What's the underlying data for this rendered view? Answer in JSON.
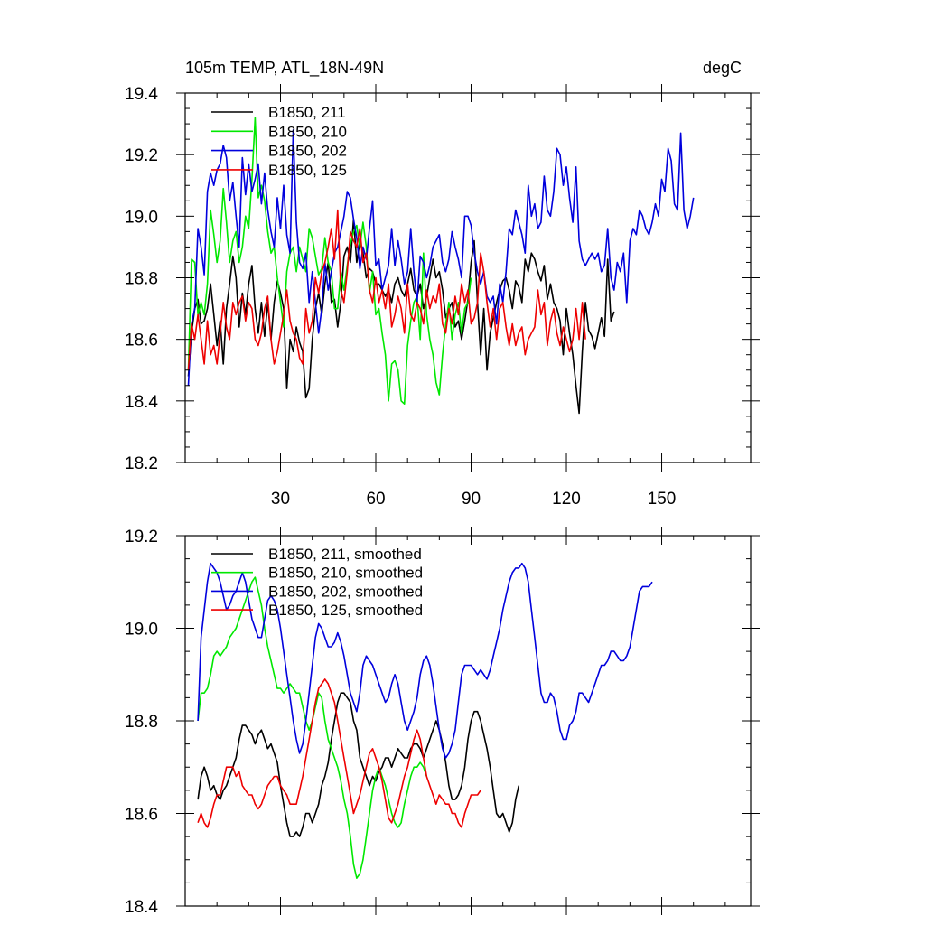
{
  "chart_data": [
    {
      "type": "line",
      "title": "105m TEMP, ATL_18N-49N",
      "units": "degC",
      "xlim": [
        0,
        178
      ],
      "ylim": [
        18.2,
        19.4
      ],
      "grid": false,
      "legend_placement": "top-left",
      "x_ticks": [
        30,
        60,
        90,
        120,
        150
      ],
      "x_tick_labels": [
        "30",
        "60",
        "90",
        "120",
        "150"
      ],
      "y_ticks": [
        18.2,
        18.4,
        18.6,
        18.8,
        19.0,
        19.2,
        19.4
      ],
      "y_tick_labels": [
        "18.2",
        "18.4",
        "18.6",
        "18.8",
        "19.0",
        "19.2",
        "19.4"
      ],
      "series": [
        {
          "name": "B1850, 211",
          "color": "#000000",
          "x0": 1,
          "values": [
            18.48,
            18.62,
            18.7,
            18.73,
            18.65,
            18.66,
            18.7,
            18.78,
            18.68,
            18.58,
            18.66,
            18.52,
            18.7,
            18.78,
            18.87,
            18.8,
            18.64,
            18.75,
            18.68,
            18.78,
            18.84,
            18.7,
            18.62,
            18.72,
            18.61,
            18.72,
            18.6,
            18.72,
            18.79,
            18.75,
            18.7,
            18.44,
            18.6,
            18.56,
            18.64,
            18.59,
            18.56,
            18.41,
            18.44,
            18.6,
            18.7,
            18.75,
            18.68,
            18.78,
            18.85,
            18.72,
            18.73,
            18.64,
            18.72,
            18.87,
            18.9,
            18.85,
            18.99,
            18.85,
            18.92,
            18.88,
            18.8,
            18.83,
            18.82,
            18.78,
            18.78,
            18.76,
            18.74,
            18.76,
            18.72,
            18.78,
            18.8,
            18.76,
            18.74,
            18.78,
            18.83,
            18.76,
            18.74,
            18.78,
            18.7,
            18.74,
            18.8,
            18.86,
            18.8,
            18.82,
            18.76,
            18.67,
            18.7,
            18.72,
            18.64,
            18.66,
            18.6,
            18.66,
            18.73,
            18.85,
            18.92,
            18.72,
            18.55,
            18.7,
            18.5,
            18.62,
            18.67,
            18.72,
            18.76,
            18.79,
            18.8,
            18.76,
            18.7,
            18.79,
            18.77,
            18.72,
            18.86,
            18.82,
            18.88,
            18.86,
            18.82,
            18.79,
            18.84,
            18.73,
            18.78,
            18.72,
            18.7,
            18.66,
            18.55,
            18.7,
            18.62,
            18.55,
            18.45,
            18.36,
            18.56,
            18.72,
            18.63,
            18.61,
            18.57,
            18.62,
            18.67,
            18.61,
            18.86,
            18.66,
            18.69
          ]
        },
        {
          "name": "B1850, 210",
          "color": "#00e800",
          "x0": 1,
          "values": [
            18.5,
            18.86,
            18.85,
            18.68,
            18.72,
            18.68,
            18.78,
            19.02,
            18.94,
            18.85,
            18.92,
            19.09,
            18.98,
            18.85,
            18.92,
            18.95,
            18.85,
            18.9,
            19.0,
            18.96,
            19.12,
            19.32,
            19.06,
            19.1,
            19.05,
            18.95,
            18.88,
            18.9,
            18.8,
            18.72,
            18.64,
            18.82,
            18.88,
            18.9,
            18.82,
            18.9,
            18.86,
            18.82,
            18.96,
            18.93,
            18.87,
            18.81,
            18.83,
            18.93,
            18.85,
            18.82,
            18.7,
            18.7,
            18.82,
            18.76,
            18.84,
            18.91,
            18.95,
            18.97,
            18.9,
            18.98,
            18.9,
            18.75,
            18.82,
            18.68,
            18.7,
            18.62,
            18.55,
            18.4,
            18.52,
            18.53,
            18.5,
            18.4,
            18.39,
            18.58,
            18.66,
            18.72,
            18.74,
            18.6,
            18.88,
            18.68,
            18.6,
            18.55,
            18.46,
            18.42,
            18.55,
            18.65,
            18.72,
            18.6,
            18.68,
            18.72,
            18.62,
            18.7,
            18.72,
            18.8
          ]
        },
        {
          "name": "B1850, 202",
          "color": "#0000dd",
          "x0": 1,
          "values": [
            18.45,
            18.65,
            18.7,
            18.96,
            18.9,
            18.81,
            19.08,
            19.14,
            19.1,
            19.15,
            19.17,
            19.23,
            19.19,
            19.05,
            19.11,
            19.0,
            18.9,
            19.19,
            19.07,
            19.17,
            19.08,
            19.12,
            19.17,
            19.04,
            19.14,
            19.02,
            18.95,
            18.9,
            19.06,
            18.96,
            19.1,
            18.94,
            18.88,
            19.28,
            18.98,
            18.85,
            18.83,
            18.88,
            18.72,
            18.82,
            18.72,
            18.62,
            18.7,
            18.85,
            18.76,
            18.82,
            18.88,
            18.9,
            18.95,
            19.0,
            19.08,
            19.06,
            18.99,
            18.93,
            18.83,
            18.9,
            18.86,
            18.96,
            19.05,
            18.84,
            18.86,
            18.76,
            18.8,
            18.84,
            18.96,
            18.84,
            18.92,
            18.86,
            18.78,
            18.82,
            18.96,
            18.82,
            18.72,
            18.87,
            18.85,
            18.8,
            18.84,
            18.9,
            18.92,
            18.94,
            18.85,
            18.82,
            18.86,
            18.95,
            18.9,
            18.86,
            18.8,
            19.0,
            19.0,
            18.97,
            18.88,
            18.82,
            18.78,
            18.82,
            18.74,
            18.72,
            18.74,
            18.65,
            18.78,
            18.72,
            18.82,
            18.96,
            18.94,
            19.02,
            18.98,
            18.94,
            18.88,
            19.1,
            19.0,
            19.04,
            18.96,
            18.98,
            19.13,
            19.02,
            19.0,
            19.08,
            19.22,
            19.2,
            19.1,
            19.16,
            19.06,
            18.98,
            19.16,
            18.92,
            18.86,
            18.84,
            18.86,
            18.88,
            18.86,
            18.88,
            18.82,
            18.84,
            18.96,
            18.8,
            18.76,
            18.85,
            18.82,
            18.88,
            18.72,
            18.92,
            18.96,
            18.94,
            19.02,
            19.0,
            18.96,
            18.94,
            18.98,
            19.04,
            19.0,
            19.12,
            19.08,
            19.22,
            19.18,
            19.04,
            19.02,
            19.27,
            19.02,
            18.96,
            19.0,
            19.06
          ]
        },
        {
          "name": "B1850, 125",
          "color": "#ee0000",
          "x0": 1,
          "values": [
            18.5,
            18.65,
            18.6,
            18.68,
            18.6,
            18.52,
            18.66,
            18.55,
            18.58,
            18.52,
            18.62,
            18.72,
            18.64,
            18.6,
            18.72,
            18.68,
            18.72,
            18.74,
            18.66,
            18.72,
            18.7,
            18.6,
            18.58,
            18.62,
            18.7,
            18.74,
            18.6,
            18.52,
            18.56,
            18.62,
            18.68,
            18.76,
            18.66,
            18.62,
            18.6,
            18.54,
            18.52,
            18.7,
            18.62,
            18.66,
            18.8,
            18.75,
            18.82,
            18.85,
            18.9,
            18.96,
            18.86,
            19.02,
            18.76,
            18.72,
            18.82,
            18.95,
            18.92,
            18.9,
            18.96,
            18.85,
            18.88,
            18.76,
            18.72,
            18.8,
            18.72,
            18.76,
            18.7,
            18.78,
            18.64,
            18.68,
            18.74,
            18.7,
            18.62,
            18.78,
            18.68,
            18.66,
            18.72,
            18.7,
            18.65,
            18.76,
            18.7,
            18.74,
            18.72,
            18.78,
            18.65,
            18.62,
            18.7,
            18.65,
            18.74,
            18.68,
            18.78,
            18.72,
            18.76,
            18.65,
            18.67,
            18.72,
            18.88,
            18.82,
            18.72,
            18.64,
            18.7,
            18.6,
            18.7,
            18.72,
            18.64,
            18.58,
            18.65,
            18.58,
            18.62,
            18.64,
            18.55,
            18.6,
            18.62,
            18.64,
            18.76,
            18.68,
            18.72,
            18.58,
            18.66,
            18.7,
            18.62,
            18.58,
            18.64,
            18.6,
            18.56,
            18.6,
            18.7,
            18.6,
            18.72,
            18.6
          ]
        }
      ]
    },
    {
      "type": "line",
      "title": "",
      "units": "",
      "xlim": [
        0,
        178
      ],
      "ylim": [
        18.4,
        19.2
      ],
      "grid": false,
      "legend_placement": "top-left",
      "x_ticks": [
        30,
        60,
        90,
        120,
        150
      ],
      "x_tick_labels": [],
      "y_ticks": [
        18.4,
        18.6,
        18.8,
        19.0,
        19.2
      ],
      "y_tick_labels": [
        "18.4",
        "18.6",
        "18.8",
        "19.0",
        "19.2"
      ],
      "series": [
        {
          "name": "B1850, 211, smoothed",
          "color": "#000000",
          "x0": 4,
          "values": [
            18.63,
            18.68,
            18.7,
            18.68,
            18.65,
            18.66,
            18.64,
            18.63,
            18.65,
            18.66,
            18.68,
            18.7,
            18.72,
            18.76,
            18.79,
            18.79,
            18.78,
            18.77,
            18.75,
            18.77,
            18.78,
            18.76,
            18.74,
            18.75,
            18.73,
            18.71,
            18.66,
            18.62,
            18.58,
            18.55,
            18.55,
            18.56,
            18.55,
            18.57,
            18.6,
            18.6,
            18.58,
            18.6,
            18.62,
            18.66,
            18.68,
            18.71,
            18.76,
            18.8,
            18.84,
            18.86,
            18.86,
            18.85,
            18.84,
            18.8,
            18.78,
            18.72,
            18.7,
            18.68,
            18.66,
            18.68,
            18.67,
            18.69,
            18.7,
            18.72,
            18.72,
            18.7,
            18.72,
            18.74,
            18.73,
            18.72,
            18.72,
            18.74,
            18.75,
            18.75,
            18.74,
            18.72,
            18.74,
            18.76,
            18.78,
            18.8,
            18.78,
            18.75,
            18.71,
            18.66,
            18.63,
            18.63,
            18.64,
            18.66,
            18.7,
            18.76,
            18.8,
            18.82,
            18.82,
            18.8,
            18.77,
            18.74,
            18.7,
            18.65,
            18.6,
            18.59,
            18.6,
            18.58,
            18.56,
            18.58,
            18.63,
            18.66
          ]
        },
        {
          "name": "B1850, 210, smoothed",
          "color": "#00e800",
          "x0": 4,
          "values": [
            18.8,
            18.86,
            18.86,
            18.87,
            18.9,
            18.94,
            18.95,
            18.94,
            18.95,
            18.96,
            18.98,
            18.99,
            19.0,
            19.02,
            19.04,
            19.06,
            19.08,
            19.1,
            19.11,
            19.08,
            19.05,
            19.0,
            18.96,
            18.93,
            18.9,
            18.87,
            18.87,
            18.86,
            18.87,
            18.88,
            18.87,
            18.86,
            18.86,
            18.83,
            18.8,
            18.78,
            18.8,
            18.83,
            18.86,
            18.85,
            18.8,
            18.76,
            18.74,
            18.72,
            18.7,
            18.67,
            18.63,
            18.6,
            18.55,
            18.49,
            18.46,
            18.47,
            18.5,
            18.55,
            18.6,
            18.65,
            18.68,
            18.7,
            18.68,
            18.66,
            18.63,
            18.6,
            18.58,
            18.57,
            18.58,
            18.62,
            18.65,
            18.68,
            18.7,
            18.7,
            18.71,
            18.7,
            18.68
          ]
        },
        {
          "name": "B1850, 202, smoothed",
          "color": "#0000dd",
          "x0": 4,
          "values": [
            18.8,
            18.98,
            19.04,
            19.1,
            19.14,
            19.13,
            19.12,
            19.1,
            19.07,
            19.04,
            19.05,
            19.07,
            19.08,
            19.1,
            19.12,
            19.1,
            19.06,
            19.02,
            19.0,
            18.98,
            18.98,
            19.02,
            19.06,
            19.07,
            19.06,
            19.04,
            19.0,
            18.95,
            18.9,
            18.85,
            18.8,
            18.76,
            18.73,
            18.75,
            18.8,
            18.86,
            18.92,
            18.98,
            19.01,
            19.0,
            18.98,
            18.96,
            18.96,
            18.97,
            18.99,
            18.97,
            18.94,
            18.9,
            18.86,
            18.84,
            18.82,
            18.86,
            18.92,
            18.94,
            18.93,
            18.92,
            18.9,
            18.88,
            18.86,
            18.84,
            18.85,
            18.88,
            18.9,
            18.88,
            18.84,
            18.8,
            18.78,
            18.8,
            18.82,
            18.85,
            18.9,
            18.93,
            18.94,
            18.92,
            18.88,
            18.83,
            18.78,
            18.74,
            18.72,
            18.73,
            18.75,
            18.78,
            18.84,
            18.9,
            18.92,
            18.92,
            18.92,
            18.91,
            18.9,
            18.91,
            18.9,
            18.89,
            18.91,
            18.94,
            18.97,
            19.0,
            19.04,
            19.07,
            19.1,
            19.12,
            19.13,
            19.13,
            19.14,
            19.13,
            19.1,
            19.04,
            18.98,
            18.92,
            18.86,
            18.84,
            18.84,
            18.86,
            18.85,
            18.82,
            18.78,
            18.76,
            18.76,
            18.79,
            18.8,
            18.82,
            18.86,
            18.86,
            18.85,
            18.84,
            18.86,
            18.88,
            18.9,
            18.92,
            18.92,
            18.93,
            18.95,
            18.95,
            18.94,
            18.93,
            18.93,
            18.94,
            18.96,
            19.0,
            19.04,
            19.08,
            19.09,
            19.09,
            19.09,
            19.1
          ]
        },
        {
          "name": "B1850, 125, smoothed",
          "color": "#ee0000",
          "x0": 4,
          "values": [
            18.58,
            18.6,
            18.58,
            18.57,
            18.59,
            18.62,
            18.64,
            18.64,
            18.67,
            18.7,
            18.7,
            18.7,
            18.68,
            18.69,
            18.66,
            18.65,
            18.64,
            18.64,
            18.62,
            18.61,
            18.62,
            18.64,
            18.66,
            18.67,
            18.68,
            18.68,
            18.66,
            18.65,
            18.64,
            18.62,
            18.62,
            18.62,
            18.65,
            18.68,
            18.72,
            18.76,
            18.8,
            18.84,
            18.87,
            18.88,
            18.89,
            18.88,
            18.86,
            18.84,
            18.8,
            18.76,
            18.72,
            18.68,
            18.64,
            18.6,
            18.62,
            18.64,
            18.67,
            18.7,
            18.73,
            18.74,
            18.72,
            18.7,
            18.67,
            18.63,
            18.59,
            18.58,
            18.6,
            18.62,
            18.65,
            18.68,
            18.7,
            18.73,
            18.76,
            18.78,
            18.76,
            18.72,
            18.68,
            18.66,
            18.64,
            18.62,
            18.64,
            18.63,
            18.62,
            18.62,
            18.6,
            18.6,
            18.58,
            18.57,
            18.6,
            18.62,
            18.64,
            18.64,
            18.64,
            18.65
          ]
        }
      ]
    }
  ]
}
